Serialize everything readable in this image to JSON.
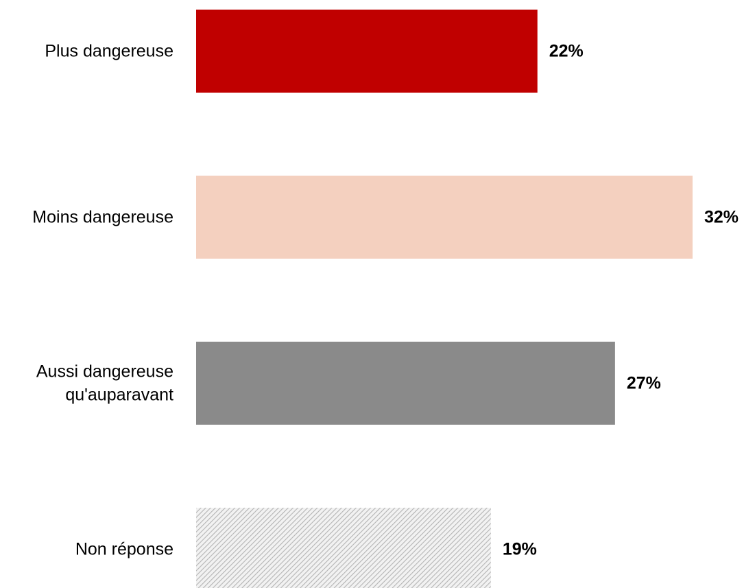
{
  "chart_data": {
    "type": "bar",
    "orientation": "horizontal",
    "categories": [
      "Plus dangereuse",
      "Moins dangereuse",
      "Aussi dangereuse qu'auparavant",
      "Non réponse"
    ],
    "category_label_lines": [
      [
        "Plus dangereuse"
      ],
      [
        "Moins dangereuse"
      ],
      [
        "Aussi dangereuse",
        "qu'auparavant"
      ],
      [
        "Non réponse"
      ]
    ],
    "values": [
      22,
      32,
      27,
      19
    ],
    "value_labels": [
      "22%",
      "32%",
      "27%",
      "19%"
    ],
    "colors": [
      "#c00000",
      "#f4d0bf",
      "#8a8a8a",
      "hatched-gray"
    ],
    "title": "",
    "xlabel": "",
    "ylabel": "",
    "xlim": [
      0,
      32
    ],
    "grid": false,
    "legend": "none"
  }
}
